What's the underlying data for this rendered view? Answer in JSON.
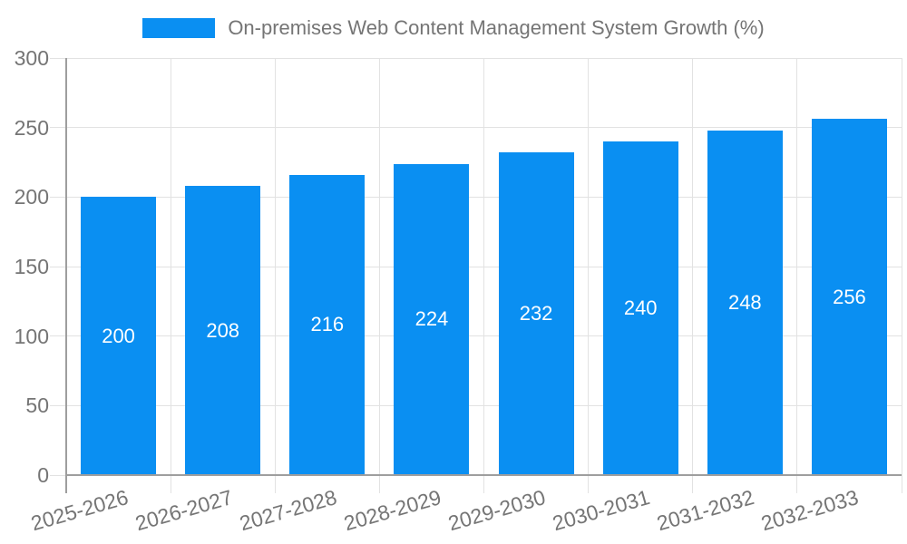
{
  "legend": {
    "label": "On-premises Web Content Management System Growth (%)"
  },
  "chart_data": {
    "type": "bar",
    "title": "On-premises Web Content Management System Growth (%)",
    "categories": [
      "2025-2026",
      "2026-2027",
      "2027-2028",
      "2028-2029",
      "2029-2030",
      "2030-2031",
      "2031-2032",
      "2032-2033"
    ],
    "values": [
      200,
      208,
      216,
      224,
      232,
      240,
      248,
      256
    ],
    "value_labels": [
      "200",
      "208",
      "216",
      "224",
      "232",
      "240",
      "248",
      "256"
    ],
    "xlabel": "",
    "ylabel": "",
    "ylim": [
      0,
      300
    ],
    "yticks": [
      0,
      50,
      100,
      150,
      200,
      250,
      300
    ],
    "grid": true,
    "legend_position": "top",
    "colors": {
      "bar": "#0a8ff2",
      "value_label": "#ffffff",
      "axis_text": "#757575",
      "gridline": "#e2e2e2",
      "axis_line": "#9e9e9e",
      "background": "#ffffff"
    }
  }
}
